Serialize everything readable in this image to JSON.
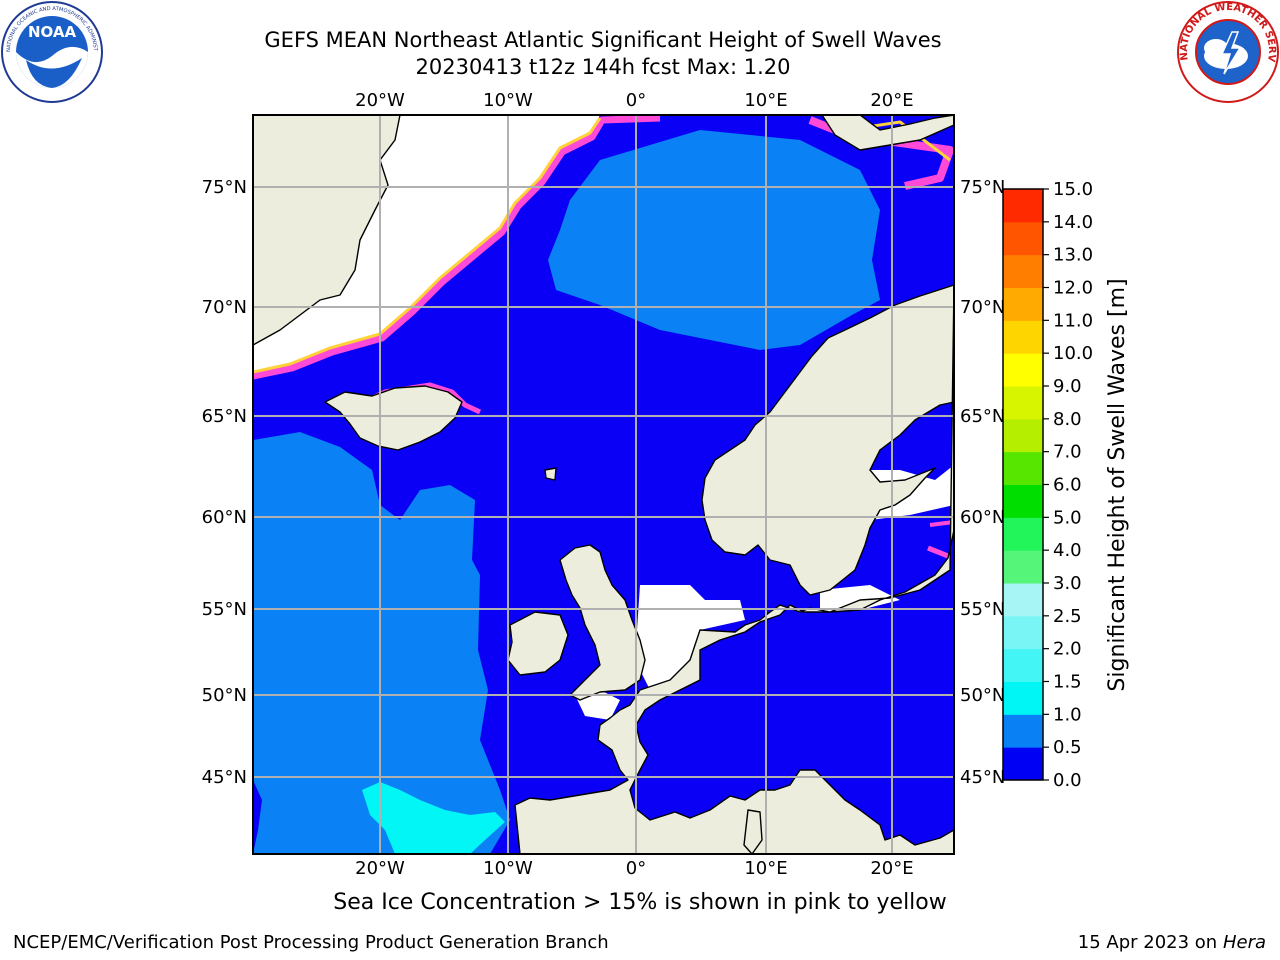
{
  "header": {
    "title_line1": "GEFS MEAN Northeast Atlantic Significant Height of Swell Waves",
    "title_line2": "20230413 t12z 144h fcst   Max: 1.20"
  },
  "logos": {
    "left": "NOAA",
    "left_ring": "NATIONAL OCEANIC AND ATMOSPHERIC ADMINISTRATION · U.S. DEPARTMENT OF COMMERCE",
    "right_ring": "NATIONAL WEATHER SERVICE"
  },
  "map": {
    "lon_labels": [
      "20°W",
      "10°W",
      "0°",
      "10°E",
      "20°E"
    ],
    "lat_labels": [
      "75°N",
      "70°N",
      "65°N",
      "60°N",
      "55°N",
      "50°N",
      "45°N"
    ],
    "colors": {
      "land": "#ededdd",
      "ocean_low": "#0a00f6",
      "ocean_mid": "#0b81f6",
      "ocean_cyan": "#02f6f6",
      "ice": "#ff4ad8",
      "ice_edge": "#ffd23a",
      "grid": "#b0b0b0"
    }
  },
  "colorbar": {
    "label": "Significant Height of Swell Waves [m]",
    "ticks": [
      "0.0",
      "0.5",
      "1.0",
      "1.5",
      "2.0",
      "2.5",
      "3.0",
      "4.0",
      "5.0",
      "6.0",
      "7.0",
      "8.0",
      "9.0",
      "10.0",
      "11.0",
      "12.0",
      "13.0",
      "14.0",
      "15.0"
    ],
    "colors": [
      "#0000f5",
      "#0a80f5",
      "#00f5f5",
      "#44f5f5",
      "#7af5f5",
      "#a8f5f5",
      "#55f57a",
      "#22f55a",
      "#00de00",
      "#56e600",
      "#b6ee00",
      "#d8f500",
      "#ffff00",
      "#ffd500",
      "#ffaa00",
      "#ff7e00",
      "#ff5500",
      "#ff2a00",
      "#ff0000"
    ]
  },
  "footer": {
    "note": "Sea Ice Concentration > 15% is shown in pink to yellow",
    "credit": "NCEP/EMC/Verification Post Processing Product Generation Branch",
    "date": "15 Apr 2023 on",
    "machine": "Hera"
  }
}
